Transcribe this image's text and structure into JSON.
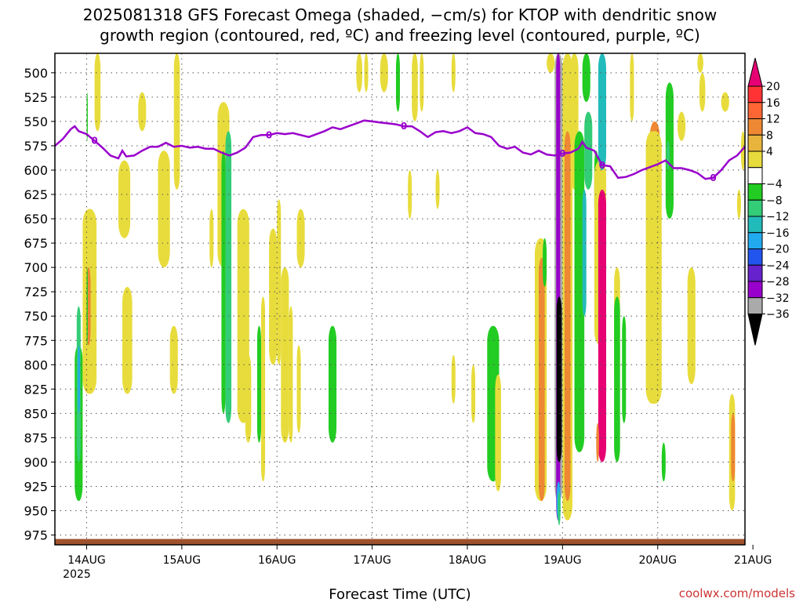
{
  "chart_data": {
    "type": "heatmap",
    "title_line1": "2025081318 GFS Forecast Omega (shaded, −cm/s) for KTOP with dendritic snow",
    "title_line2": "growth region (contoured, red, ºC) and freezing level (contoured, purple, ºC)",
    "xlabel": "Forecast Time (UTC)",
    "credit": "coolwx.com/models",
    "y_axis": {
      "reversed": true,
      "range": [
        480,
        985
      ],
      "ticks": [
        500,
        525,
        550,
        575,
        600,
        625,
        650,
        675,
        700,
        725,
        750,
        775,
        800,
        825,
        850,
        875,
        900,
        925,
        950,
        975
      ]
    },
    "x_axis": {
      "range_hours": [
        -2,
        172
      ],
      "tick_labels": [
        "14AUG",
        "15AUG",
        "16AUG",
        "17AUG",
        "18AUG",
        "19AUG",
        "20AUG",
        "21AUG"
      ],
      "tick_hours": [
        6,
        30,
        54,
        78,
        102,
        126,
        150,
        174
      ],
      "year_label": "2025",
      "grid": "dotted"
    },
    "colorbar": {
      "labels": [
        "20",
        "16",
        "12",
        "8",
        "4",
        "−4",
        "−8",
        "−12",
        "−16",
        "−20",
        "−24",
        "−28",
        "−32",
        "−36"
      ],
      "bins": [
        {
          "color": "#e60073"
        },
        {
          "color": "#ff3333"
        },
        {
          "color": "#ff6633"
        },
        {
          "color": "#ee8833"
        },
        {
          "color": "#e8b43c"
        },
        {
          "color": "#e8dc3c"
        },
        {
          "color": "#ffffff"
        },
        {
          "color": "#22cc22"
        },
        {
          "color": "#33cc77"
        },
        {
          "color": "#22bbbb"
        },
        {
          "color": "#22aaee"
        },
        {
          "color": "#2255ee"
        },
        {
          "color": "#6622cc"
        },
        {
          "color": "#9900cc"
        },
        {
          "color": "#aaaaaa"
        },
        {
          "color": "#000000"
        }
      ]
    },
    "freezing_level": {
      "label": "0",
      "color": "#9900cc",
      "points": [
        [
          -2,
          575
        ],
        [
          0,
          568
        ],
        [
          2,
          558
        ],
        [
          3,
          555
        ],
        [
          4,
          560
        ],
        [
          6,
          563
        ],
        [
          8,
          570
        ],
        [
          10,
          577
        ],
        [
          12,
          585
        ],
        [
          14,
          588
        ],
        [
          15,
          580
        ],
        [
          16,
          586
        ],
        [
          18,
          585
        ],
        [
          20,
          580
        ],
        [
          22,
          576
        ],
        [
          24,
          576
        ],
        [
          26,
          572
        ],
        [
          28,
          576
        ],
        [
          30,
          575
        ],
        [
          32,
          577
        ],
        [
          34,
          576
        ],
        [
          36,
          578
        ],
        [
          38,
          578
        ],
        [
          40,
          582
        ],
        [
          42,
          585
        ],
        [
          44,
          582
        ],
        [
          46,
          577
        ],
        [
          48,
          566
        ],
        [
          50,
          564
        ],
        [
          52,
          564
        ],
        [
          54,
          562
        ],
        [
          56,
          563
        ],
        [
          58,
          562
        ],
        [
          60,
          564
        ],
        [
          62,
          566
        ],
        [
          64,
          563
        ],
        [
          66,
          560
        ],
        [
          68,
          556
        ],
        [
          70,
          558
        ],
        [
          72,
          555
        ],
        [
          74,
          552
        ],
        [
          76,
          549
        ],
        [
          78,
          550
        ],
        [
          80,
          551
        ],
        [
          82,
          552
        ],
        [
          84,
          553
        ],
        [
          86,
          555
        ],
        [
          88,
          555
        ],
        [
          90,
          560
        ],
        [
          92,
          566
        ],
        [
          94,
          561
        ],
        [
          96,
          560
        ],
        [
          98,
          562
        ],
        [
          100,
          560
        ],
        [
          102,
          556
        ],
        [
          104,
          562
        ],
        [
          106,
          563
        ],
        [
          108,
          566
        ],
        [
          110,
          575
        ],
        [
          112,
          578
        ],
        [
          114,
          576
        ],
        [
          116,
          582
        ],
        [
          118,
          584
        ],
        [
          120,
          580
        ],
        [
          122,
          584
        ],
        [
          124,
          585
        ],
        [
          126,
          583
        ],
        [
          128,
          582
        ],
        [
          130,
          578
        ],
        [
          131,
          571
        ],
        [
          132,
          577
        ],
        [
          134,
          580
        ],
        [
          136,
          595
        ],
        [
          138,
          596
        ],
        [
          140,
          608
        ],
        [
          142,
          607
        ],
        [
          144,
          604
        ],
        [
          146,
          600
        ],
        [
          148,
          597
        ],
        [
          150,
          594
        ],
        [
          152,
          590
        ],
        [
          154,
          598
        ],
        [
          156,
          598
        ],
        [
          158,
          600
        ],
        [
          160,
          603
        ],
        [
          162,
          609
        ],
        [
          164,
          608
        ],
        [
          166,
          600
        ],
        [
          168,
          590
        ],
        [
          170,
          585
        ],
        [
          172,
          576
        ]
      ]
    },
    "ground": {
      "color": "#a0522d",
      "pressure": 975
    }
  }
}
